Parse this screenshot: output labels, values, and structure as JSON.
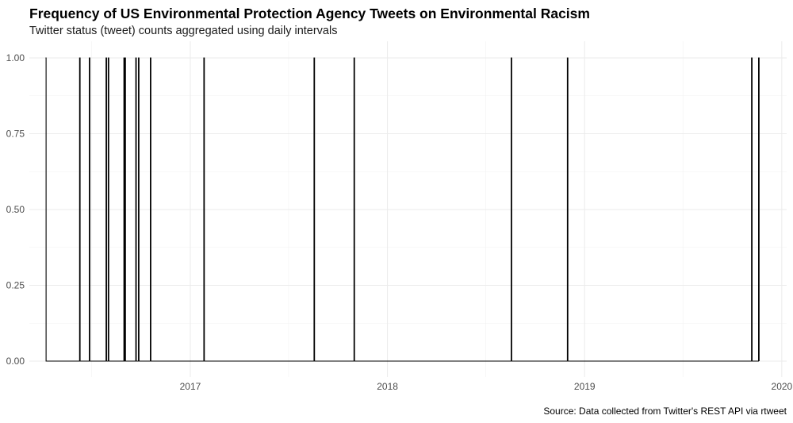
{
  "chart_data": {
    "type": "line",
    "title": "Frequency of US Environmental Protection Agency Tweets on Environmental Racism",
    "subtitle": "Twitter status (tweet) counts aggregated using daily intervals",
    "caption": "Source: Data collected from Twitter's REST API via rtweet",
    "xlabel": "",
    "ylabel": "",
    "x_range": [
      "2016-03-09",
      "2020-01-10"
    ],
    "ylim": [
      0,
      1
    ],
    "y_ticks": [
      0.0,
      0.25,
      0.5,
      0.75,
      1.0
    ],
    "y_tick_labels": [
      "0.00",
      "0.25",
      "0.50",
      "0.75",
      "1.00"
    ],
    "x_ticks": [
      "2017-01-01",
      "2018-01-01",
      "2019-01-01",
      "2020-01-01"
    ],
    "x_tick_labels": [
      "2017",
      "2018",
      "2019",
      "2020"
    ],
    "grid": true,
    "legend": "none",
    "line_color": "#000000",
    "series": [
      {
        "x": [
          "2016-04-08",
          "2016-06-10",
          "2016-06-28",
          "2016-07-29",
          "2016-08-02",
          "2016-08-31",
          "2016-09-02",
          "2016-09-22",
          "2016-09-27",
          "2016-10-19",
          "2017-01-26",
          "2017-08-18",
          "2017-10-31",
          "2018-08-18",
          "2018-11-30",
          "2019-11-06",
          "2019-11-19"
        ],
        "y": [
          1,
          1,
          1,
          1,
          1,
          1,
          1,
          1,
          1,
          1,
          1,
          1,
          1,
          1,
          1,
          1,
          1
        ]
      }
    ]
  }
}
